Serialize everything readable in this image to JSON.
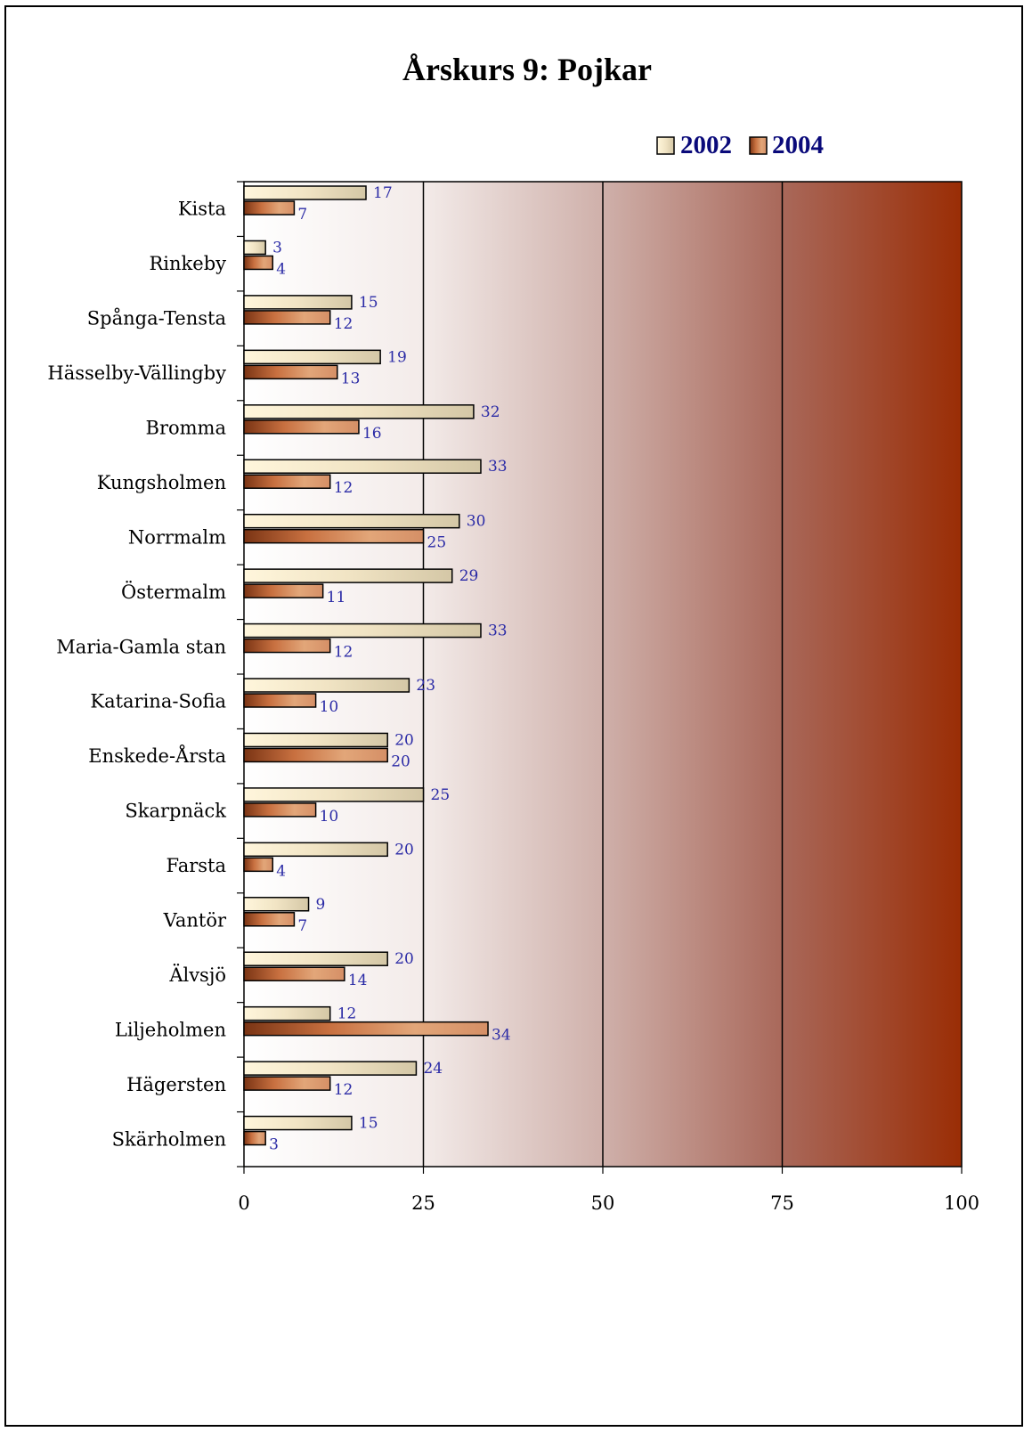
{
  "chart_data": {
    "type": "bar",
    "orientation": "horizontal",
    "title": "Årskurs 9:  Pojkar",
    "categories": [
      "Kista",
      "Rinkeby",
      "Spånga-Tensta",
      "Hässelby-Vällingby",
      "Bromma",
      "Kungsholmen",
      "Norrmalm",
      "Östermalm",
      "Maria-Gamla stan",
      "Katarina-Sofia",
      "Enskede-Årsta",
      "Skarpnäck",
      "Farsta",
      "Vantör",
      "Älvsjö",
      "Liljeholmen",
      "Hägersten",
      "Skärholmen"
    ],
    "series": [
      {
        "name": "2002",
        "values": [
          17,
          3,
          15,
          19,
          32,
          33,
          30,
          29,
          33,
          23,
          20,
          25,
          20,
          9,
          20,
          12,
          24,
          15
        ]
      },
      {
        "name": "2004",
        "values": [
          7,
          4,
          12,
          13,
          16,
          12,
          25,
          11,
          12,
          10,
          20,
          10,
          4,
          7,
          14,
          34,
          12,
          3
        ]
      }
    ],
    "xlim": [
      0,
      100
    ],
    "xticks": [
      0,
      25,
      50,
      75,
      100
    ],
    "xtick_labels": [
      "0",
      "25",
      "50",
      "75",
      "100"
    ],
    "legend_position": "top-right",
    "grid": true,
    "colors": {
      "series_2002": "#f3e6c6",
      "series_2004": "#b55a2c",
      "data_label": "#2b2ba6",
      "legend_text": "#0a0a7a",
      "background_end": "#9a2d05"
    }
  }
}
